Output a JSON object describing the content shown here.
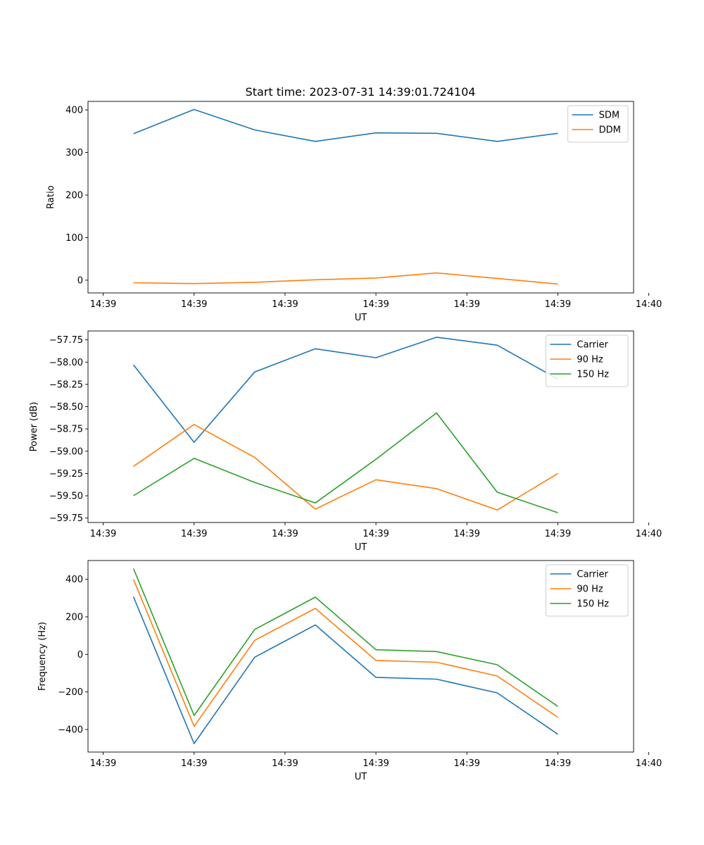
{
  "figure": {
    "title": "Start time: 2023-07-31 14:39:01.724104"
  },
  "chart_data": [
    {
      "type": "line",
      "ylabel": "Ratio",
      "xlabel": "UT",
      "ylim": [
        -30,
        420
      ],
      "yticks": [
        0,
        100,
        200,
        300,
        400
      ],
      "ytick_labels": [
        "0",
        "100",
        "200",
        "300",
        "400"
      ],
      "xlim": [
        -0.5,
        8.5
      ],
      "xticks": [
        -0.25,
        1.25,
        2.75,
        4.25,
        5.75,
        7.25,
        8.75
      ],
      "xtick_labels": [
        "14:39",
        "14:39",
        "14:39",
        "14:39",
        "14:39",
        "14:39",
        "14:40"
      ],
      "x": [
        0.25,
        1.25,
        2.25,
        3.25,
        4.25,
        5.25,
        6.25,
        7.25
      ],
      "legend": "top-right",
      "series": [
        {
          "name": "SDM",
          "color": "#1f77b4",
          "values": [
            344,
            401,
            353,
            326,
            346,
            345,
            326,
            345
          ]
        },
        {
          "name": "DDM",
          "color": "#ff7f0e",
          "values": [
            -6,
            -8,
            -5,
            1,
            5,
            17,
            4,
            -9
          ]
        }
      ]
    },
    {
      "type": "line",
      "ylabel": "Power (dB)",
      "xlabel": "UT",
      "ylim": [
        -59.8,
        -57.65
      ],
      "yticks": [
        -59.75,
        -59.5,
        -59.25,
        -59.0,
        -58.75,
        -58.5,
        -58.25,
        -58.0,
        -57.75
      ],
      "ytick_labels": [
        "−59.75",
        "−59.50",
        "−59.25",
        "−59.00",
        "−58.75",
        "−58.50",
        "−58.25",
        "−58.00",
        "−57.75"
      ],
      "xlim": [
        -0.5,
        8.5
      ],
      "xticks": [
        -0.25,
        1.25,
        2.75,
        4.25,
        5.75,
        7.25,
        8.75
      ],
      "xtick_labels": [
        "14:39",
        "14:39",
        "14:39",
        "14:39",
        "14:39",
        "14:39",
        "14:40"
      ],
      "x": [
        0.25,
        1.25,
        2.25,
        3.25,
        4.25,
        5.25,
        6.25,
        7.25
      ],
      "legend": "top-right",
      "series": [
        {
          "name": "Carrier",
          "color": "#1f77b4",
          "values": [
            -58.03,
            -58.9,
            -58.11,
            -57.85,
            -57.95,
            -57.72,
            -57.81,
            -58.19
          ]
        },
        {
          "name": "90 Hz",
          "color": "#ff7f0e",
          "values": [
            -59.17,
            -58.7,
            -59.07,
            -59.65,
            -59.32,
            -59.42,
            -59.66,
            -59.25
          ]
        },
        {
          "name": "150 Hz",
          "color": "#2ca02c",
          "values": [
            -59.5,
            -59.08,
            -59.35,
            -59.58,
            -59.09,
            -58.57,
            -59.46,
            -59.69
          ]
        }
      ]
    },
    {
      "type": "line",
      "ylabel": "Frequency (Hz)",
      "xlabel": "UT",
      "ylim": [
        -520,
        500
      ],
      "yticks": [
        -400,
        -200,
        0,
        200,
        400
      ],
      "ytick_labels": [
        "−400",
        "−200",
        "0",
        "200",
        "400"
      ],
      "xlim": [
        -0.5,
        8.5
      ],
      "xticks": [
        -0.25,
        1.25,
        2.75,
        4.25,
        5.75,
        7.25,
        8.75
      ],
      "xtick_labels": [
        "14:39",
        "14:39",
        "14:39",
        "14:39",
        "14:39",
        "14:39",
        "14:40"
      ],
      "x": [
        0.25,
        1.25,
        2.25,
        3.25,
        4.25,
        5.25,
        6.25,
        7.25
      ],
      "legend": "top-right",
      "series": [
        {
          "name": "Carrier",
          "color": "#1f77b4",
          "values": [
            307,
            -475,
            -15,
            157,
            -122,
            -132,
            -205,
            -425
          ]
        },
        {
          "name": "90 Hz",
          "color": "#ff7f0e",
          "values": [
            400,
            -383,
            75,
            245,
            -32,
            -42,
            -115,
            -335
          ]
        },
        {
          "name": "150 Hz",
          "color": "#2ca02c",
          "values": [
            457,
            -325,
            133,
            305,
            25,
            15,
            -55,
            -277
          ]
        }
      ]
    }
  ]
}
